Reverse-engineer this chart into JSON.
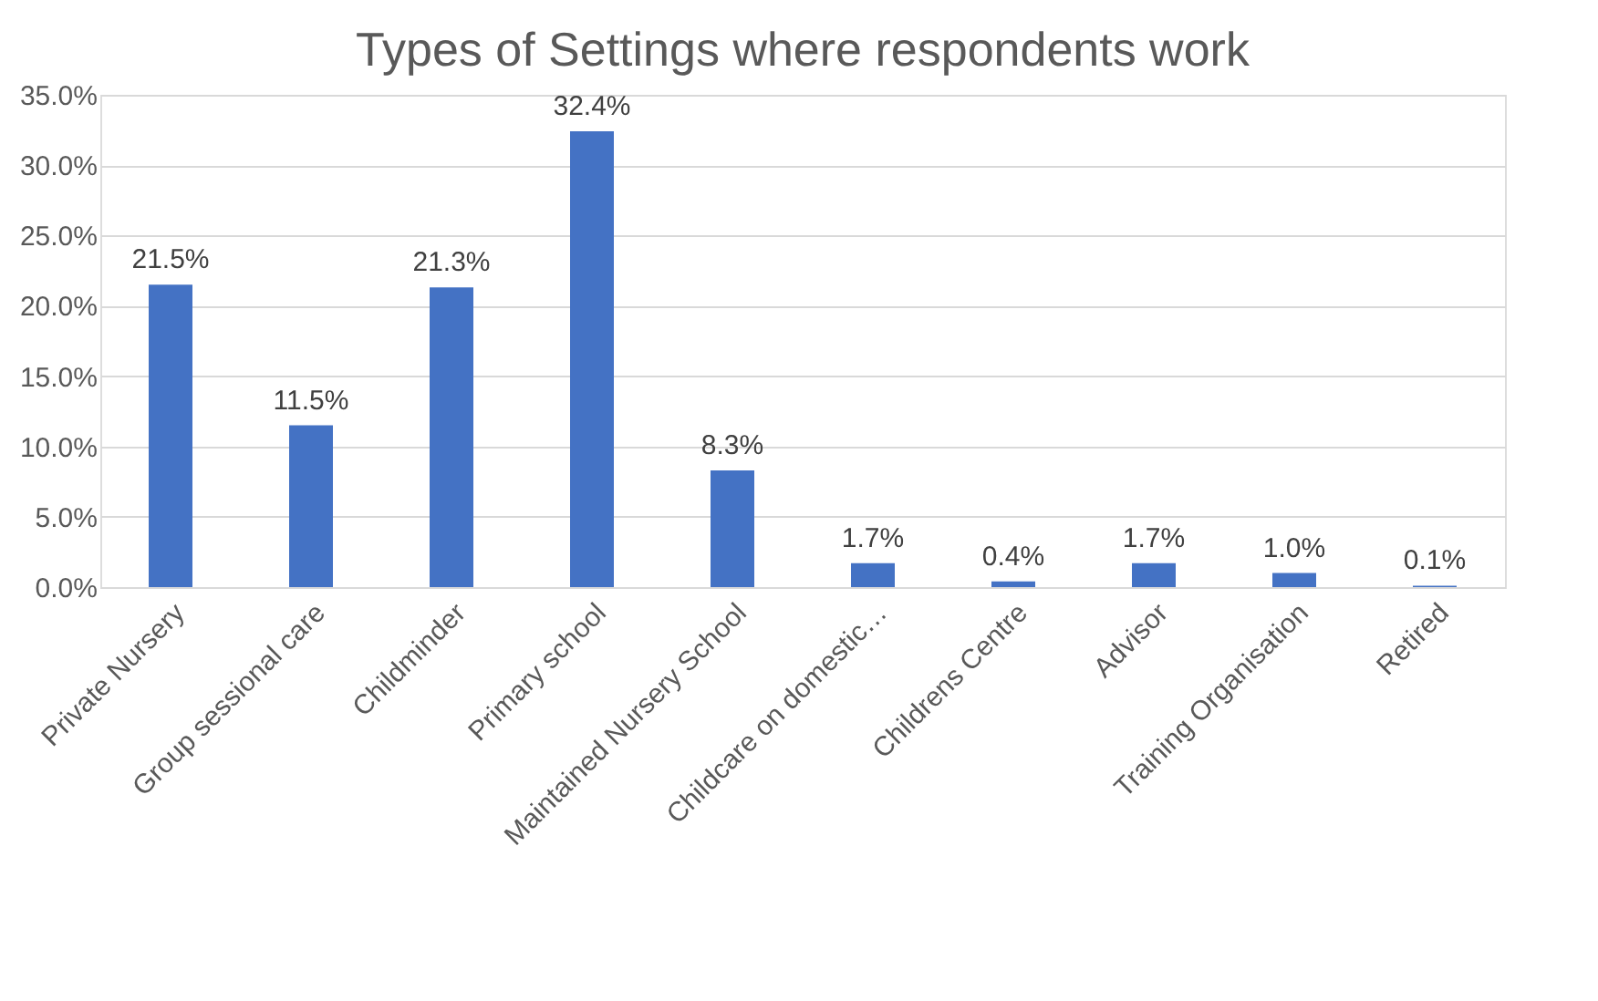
{
  "chart_data": {
    "type": "bar",
    "title": "Types of Settings where respondents work",
    "categories": [
      "Private Nursery",
      "Group sessional care",
      "Childminder",
      "Primary school",
      "Maintained Nursery School",
      "Childcare on domestic…",
      "Childrens Centre",
      "Advisor",
      "Training Organisation",
      "Retired"
    ],
    "values": [
      21.5,
      11.5,
      21.3,
      32.4,
      8.3,
      1.7,
      0.4,
      1.7,
      1.0,
      0.1
    ],
    "value_labels": [
      "21.5%",
      "11.5%",
      "21.3%",
      "32.4%",
      "8.3%",
      "1.7%",
      "0.4%",
      "1.7%",
      "1.0%",
      "0.1%"
    ],
    "color": "#4472c4",
    "ylim": [
      0,
      35
    ],
    "yticks": [
      {
        "value": 0,
        "label": "0.0%"
      },
      {
        "value": 5,
        "label": "5.0%"
      },
      {
        "value": 10,
        "label": "10.0%"
      },
      {
        "value": 15,
        "label": "15.0%"
      },
      {
        "value": 20,
        "label": "20.0%"
      },
      {
        "value": 25,
        "label": "25.0%"
      },
      {
        "value": 30,
        "label": "30.0%"
      },
      {
        "value": 35,
        "label": "35.0%"
      }
    ],
    "grid": "y",
    "legend": false
  }
}
